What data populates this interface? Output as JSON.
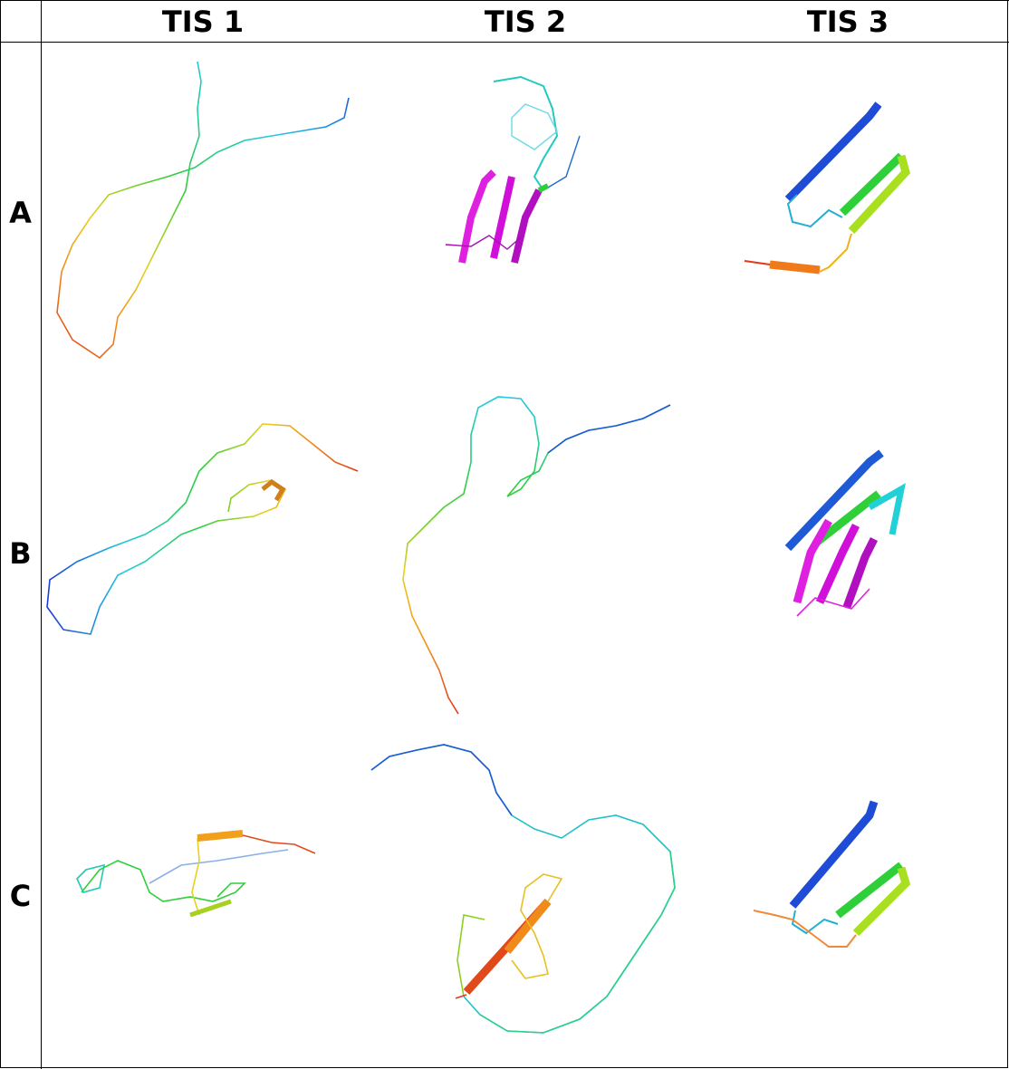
{
  "columns": [
    "TIS 1",
    "TIS 2",
    "TIS 3"
  ],
  "rows": [
    "A",
    "B",
    "C"
  ],
  "palette": {
    "blue": "#1f3cd6",
    "cyan": "#22c9e0",
    "green": "#2fcf3a",
    "yellow": "#e8d11e",
    "orange": "#f08a1a",
    "red": "#e03a1a",
    "magenta": "#e020e0",
    "purple": "#b010c0"
  }
}
